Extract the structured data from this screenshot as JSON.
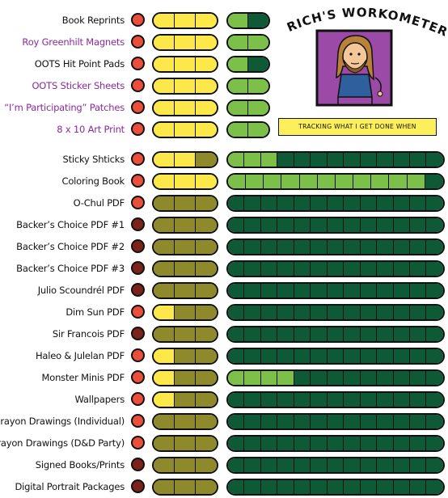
{
  "title": "RICH'S WORKOMETER!",
  "tagline": "TRACKING WHAT I GET DONE WHEN",
  "colors": {
    "dot_red": "#ec4e3c",
    "dot_dark": "#7b231a",
    "yellow": "#fde84a",
    "olive": "#8e8a2c",
    "light_green": "#7cc04a",
    "dark_green": "#0f5a36",
    "purple_label": "#8a2a9c"
  },
  "rows": [
    {
      "label": "Book Reprints",
      "purple": false,
      "dot": "red",
      "small": "YYY",
      "big": [
        "L",
        "D"
      ]
    },
    {
      "label": "Roy Greenhilt Magnets",
      "purple": true,
      "dot": "red",
      "small": "YYY",
      "big": [
        "L",
        "L"
      ]
    },
    {
      "label": "OOTS Hit Point Pads",
      "purple": false,
      "dot": "red",
      "small": "YYY",
      "big": [
        "L",
        "D"
      ]
    },
    {
      "label": "OOTS Sticker Sheets",
      "purple": true,
      "dot": "red",
      "small": "YYY",
      "big": [
        "L",
        "L"
      ]
    },
    {
      "label": "“I’m Participating” Patches",
      "purple": true,
      "dot": "red",
      "small": "YYY",
      "big": [
        "L",
        "L"
      ]
    },
    {
      "label": "8 x 10 Art Print",
      "purple": true,
      "dot": "red",
      "small": "YYY",
      "big": [
        "L",
        "L"
      ]
    },
    {
      "label": "Sticky Shticks",
      "purple": false,
      "dot": "red",
      "small": "YYO",
      "big": [
        "L",
        "L",
        "L",
        "D",
        "D",
        "D",
        "D",
        "D",
        "D",
        "D",
        "D",
        "D",
        "D"
      ]
    },
    {
      "label": "Coloring Book",
      "purple": false,
      "dot": "red",
      "small": "YYY",
      "big": [
        "L",
        "L",
        "L",
        "L",
        "L",
        "L",
        "L",
        "L",
        "L",
        "L",
        "L",
        "D"
      ]
    },
    {
      "label": "O-Chul PDF",
      "purple": false,
      "dot": "red",
      "small": "OOO",
      "big": [
        "D",
        "D",
        "D",
        "D",
        "D",
        "D",
        "D",
        "D",
        "D",
        "D",
        "D",
        "D",
        "D"
      ]
    },
    {
      "label": "Backer’s Choice PDF #1",
      "purple": false,
      "dot": "dark",
      "small": "OOO",
      "big": [
        "D",
        "D",
        "D",
        "D",
        "D",
        "D",
        "D",
        "D",
        "D",
        "D",
        "D",
        "D",
        "D"
      ]
    },
    {
      "label": "Backer’s Choice PDF #2",
      "purple": false,
      "dot": "dark",
      "small": "OOO",
      "big": [
        "D",
        "D",
        "D",
        "D",
        "D",
        "D",
        "D",
        "D",
        "D",
        "D",
        "D",
        "D",
        "D"
      ]
    },
    {
      "label": "Backer’s Choice PDF #3",
      "purple": false,
      "dot": "dark",
      "small": "OOO",
      "big": [
        "D",
        "D",
        "D",
        "D",
        "D",
        "D",
        "D",
        "D",
        "D",
        "D",
        "D",
        "D",
        "D"
      ]
    },
    {
      "label": "Julio Scoundrél PDF",
      "purple": false,
      "dot": "dark",
      "small": "OOO",
      "big": [
        "D",
        "D",
        "D",
        "D",
        "D",
        "D",
        "D",
        "D",
        "D",
        "D",
        "D",
        "D",
        "D"
      ]
    },
    {
      "label": "Dim Sun PDF",
      "purple": false,
      "dot": "red",
      "small": "YOO",
      "big": [
        "D",
        "D",
        "D",
        "D",
        "D",
        "D",
        "D",
        "D",
        "D",
        "D",
        "D",
        "D",
        "D"
      ]
    },
    {
      "label": "Sir Francois  PDF",
      "purple": false,
      "dot": "dark",
      "small": "OOO",
      "big": [
        "D",
        "D",
        "D",
        "D",
        "D",
        "D",
        "D",
        "D",
        "D",
        "D",
        "D",
        "D",
        "D"
      ]
    },
    {
      "label": "Haleo & Julelan PDF",
      "purple": false,
      "dot": "red",
      "small": "YOO",
      "big": [
        "D",
        "D",
        "D",
        "D",
        "D",
        "D",
        "D",
        "D",
        "D",
        "D",
        "D",
        "D",
        "D"
      ]
    },
    {
      "label": "Monster Minis PDF",
      "purple": false,
      "dot": "red",
      "small": "YOO",
      "big": [
        "L",
        "L",
        "L",
        "L",
        "D",
        "D",
        "D",
        "D",
        "D",
        "D",
        "D",
        "D",
        "D"
      ]
    },
    {
      "label": "Wallpapers",
      "purple": false,
      "dot": "red",
      "small": "YOO",
      "big": [
        "D",
        "D",
        "D",
        "D",
        "D",
        "D",
        "D",
        "D",
        "D",
        "D",
        "D",
        "D",
        "D"
      ]
    },
    {
      "label": "Crayon Drawings (Individual)",
      "purple": false,
      "dot": "red",
      "small": "OOO",
      "big": [
        "D",
        "D",
        "D",
        "D",
        "D",
        "D",
        "D",
        "D",
        "D",
        "D",
        "D",
        "D",
        "D"
      ]
    },
    {
      "label": "Crayon Drawings (D&D Party)",
      "purple": false,
      "dot": "red",
      "small": "OOO",
      "big": [
        "D",
        "D",
        "D",
        "D",
        "D",
        "D",
        "D",
        "D",
        "D",
        "D",
        "D",
        "D",
        "D"
      ]
    },
    {
      "label": "Signed Books/Prints",
      "purple": false,
      "dot": "dark",
      "small": "OOO",
      "big": [
        "D",
        "D",
        "D",
        "D",
        "D",
        "D",
        "D",
        "D",
        "D",
        "D",
        "D",
        "D",
        "D"
      ]
    },
    {
      "label": "Digital Portrait Packages",
      "purple": false,
      "dot": "dark",
      "small": "OOO",
      "big": [
        "D",
        "D",
        "D",
        "D",
        "D",
        "D",
        "D",
        "D",
        "D",
        "D",
        "D",
        "D",
        "D"
      ]
    }
  ]
}
